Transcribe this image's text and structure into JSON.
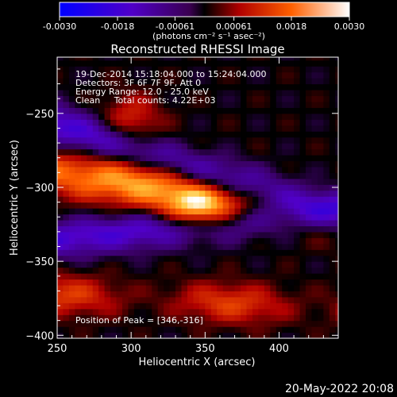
{
  "chart_data": {
    "type": "heatmap",
    "title": "Reconstructed RHESSI Image",
    "xlabel": "Heliocentric X (arcsec)",
    "ylabel": "Heliocentric Y (arcsec)",
    "xlim": [
      250,
      440
    ],
    "ylim": [
      -402,
      -212
    ],
    "x_ticks": [
      250,
      300,
      350,
      400
    ],
    "y_ticks": [
      -250,
      -300,
      -350,
      -400
    ],
    "colorbar": {
      "min": -0.003,
      "max": 0.003,
      "tick_values": [
        -0.003,
        -0.0018,
        -0.00061,
        0.00061,
        0.0018,
        0.003
      ],
      "tick_labels": [
        "-0.0030",
        "-0.0018",
        "-0.00061",
        "0.00061",
        "0.0018",
        "0.0030"
      ],
      "units": "(photons cm⁻² s⁻¹ asec⁻²)"
    },
    "annotations": [
      "19-Dec-2014 15:18:04.000 to 15:24:04.000",
      "Detectors: 3F 6F 7F 9F, Att 0",
      "Energy Range: 12.0 - 25.0 keV",
      "Clean     Total counts: 4.22E+03"
    ],
    "peak_label": "Position of Peak = [346,-316]",
    "peak": [
      346,
      -316
    ],
    "grid": false,
    "colors": {
      "background": "#000000",
      "text": "#ffffff"
    }
  },
  "footer": {
    "date": "20-May-2022 20:08"
  }
}
